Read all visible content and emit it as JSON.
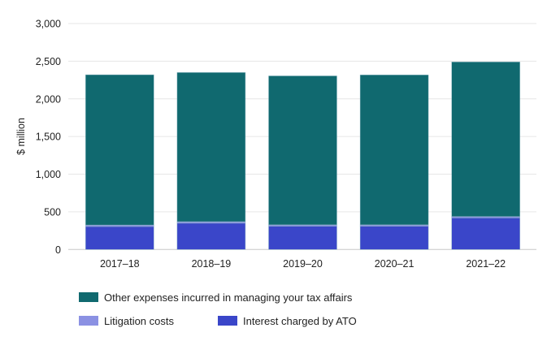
{
  "chart_data": {
    "type": "bar",
    "stacked": true,
    "title": "",
    "xlabel": "",
    "ylabel": "$ million",
    "ylim": [
      0,
      3000
    ],
    "yticks": [
      0,
      500,
      1000,
      1500,
      2000,
      2500,
      3000
    ],
    "ytick_labels": [
      "0",
      "500",
      "1,000",
      "1,500",
      "2,000",
      "2,500",
      "3,000"
    ],
    "grid": true,
    "categories": [
      "2017–18",
      "2018–19",
      "2019–20",
      "2020–21",
      "2021–22"
    ],
    "series": [
      {
        "name": "Interest charged by ATO",
        "color": "#3a46c9",
        "values": [
          305,
          350,
          310,
          310,
          420
        ]
      },
      {
        "name": "Litigation costs",
        "color": "#8b91e3",
        "values": [
          20,
          20,
          18,
          18,
          18
        ]
      },
      {
        "name": "Other expenses incurred in managing your tax affairs",
        "color": "#10696f",
        "values": [
          1995,
          1980,
          1977,
          1990,
          2052
        ]
      }
    ],
    "legend_position": "bottom",
    "legend": [
      [
        {
          "label": "Other expenses incurred in managing your tax affairs",
          "color": "#10696f"
        }
      ],
      [
        {
          "label": "Litigation costs",
          "color": "#8b91e3"
        },
        {
          "label": "Interest charged by ATO",
          "color": "#3a46c9"
        }
      ]
    ]
  },
  "colors": {
    "gridline": "#e6e6e6",
    "axis": "#c8c8c8"
  }
}
